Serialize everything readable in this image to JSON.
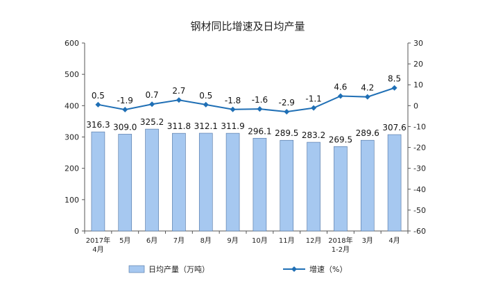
{
  "chart_data": {
    "type": "bar+line",
    "title": "钢材同比增速及日均产量",
    "categories": [
      [
        "2017年",
        "4月"
      ],
      [
        "5月"
      ],
      [
        "6月"
      ],
      [
        "7月"
      ],
      [
        "8月"
      ],
      [
        "9月"
      ],
      [
        "10月"
      ],
      [
        "11月"
      ],
      [
        "12月"
      ],
      [
        "2018年",
        "1-2月"
      ],
      [
        "3月"
      ],
      [
        "4月"
      ]
    ],
    "series": [
      {
        "name": "日均产量（万吨）",
        "type": "bar",
        "axis": "left",
        "color": "#a6c8f0",
        "values": [
          316.3,
          309.0,
          325.2,
          311.8,
          312.1,
          311.9,
          296.1,
          289.5,
          283.2,
          269.5,
          289.6,
          307.6
        ],
        "labels": [
          "316.3",
          "309.0",
          "325.2",
          "311.8",
          "312.1",
          "311.9",
          "296.1",
          "289.5",
          "283.2",
          "269.5",
          "289.6",
          "307.6"
        ]
      },
      {
        "name": "增速（%）",
        "type": "line",
        "axis": "right",
        "color": "#1f6fb5",
        "values": [
          0.5,
          -1.9,
          0.7,
          2.7,
          0.5,
          -1.8,
          -1.6,
          -2.9,
          -1.1,
          4.6,
          4.2,
          8.5
        ],
        "labels": [
          "0.5",
          "-1.9",
          "0.7",
          "2.7",
          "0.5",
          "-1.8",
          "-1.6",
          "-2.9",
          "-1.1",
          "4.6",
          "4.2",
          "8.5"
        ]
      }
    ],
    "y_left": {
      "min": 0,
      "max": 600,
      "ticks": [
        "0",
        "100",
        "200",
        "300",
        "400",
        "500",
        "600"
      ]
    },
    "y_right": {
      "min": -60,
      "max": 30,
      "ticks": [
        "-60",
        "-50",
        "-40",
        "-30",
        "-20",
        "-10",
        "0",
        "10",
        "20",
        "30"
      ]
    },
    "grid": false,
    "legend": {
      "position": "bottom"
    },
    "xlabel": "",
    "ylabel": ""
  }
}
